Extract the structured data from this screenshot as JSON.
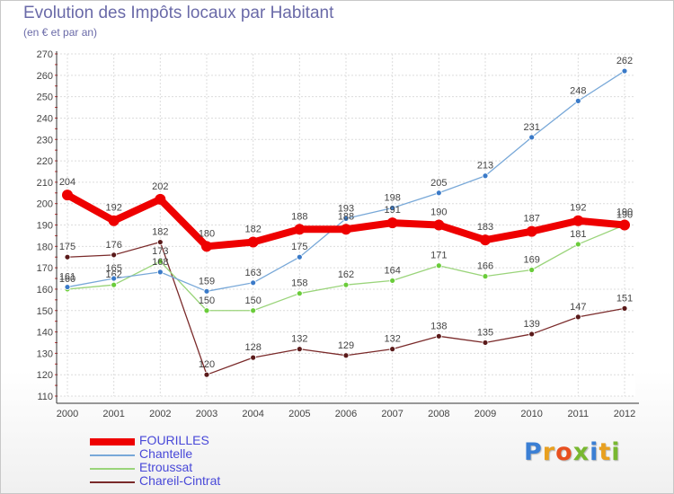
{
  "title": "Evolution des Impôts locaux par Habitant",
  "subtitle": "(en € et par an)",
  "logo": {
    "text": "Proxiti",
    "letters": [
      "P",
      "r",
      "o",
      "x",
      "i",
      "t",
      "i"
    ],
    "colors": [
      "#3b7fd4",
      "#e8a020",
      "#e85020",
      "#78b830",
      "#3b7fd4",
      "#e8a020",
      "#78b830"
    ]
  },
  "chart_data": {
    "type": "line",
    "title": "Evolution des Impôts locaux par Habitant",
    "subtitle": "(en € et par an)",
    "xlabel": "",
    "ylabel": "",
    "categories": [
      "2000",
      "2001",
      "2002",
      "2003",
      "2004",
      "2005",
      "2006",
      "2007",
      "2008",
      "2009",
      "2010",
      "2011",
      "2012"
    ],
    "ylim": [
      110,
      270
    ],
    "yticks": [
      110,
      120,
      130,
      140,
      150,
      160,
      170,
      180,
      190,
      200,
      210,
      220,
      230,
      240,
      250,
      260,
      270
    ],
    "grid": true,
    "legend_position": "bottom-left",
    "series": [
      {
        "name": "Chareil-Cintrat",
        "color": "#7a2a2a",
        "marker": "#5a1a1a",
        "values": [
          175,
          176,
          182,
          120,
          128,
          132,
          129,
          132,
          138,
          135,
          139,
          147,
          151
        ]
      },
      {
        "name": "Etroussat",
        "color": "#9ad47a",
        "marker": "#6acc3a",
        "values": [
          160,
          162,
          173,
          150,
          150,
          158,
          162,
          164,
          171,
          166,
          169,
          181,
          190
        ]
      },
      {
        "name": "Chantelle",
        "color": "#78a8d8",
        "marker": "#3a7ac8",
        "values": [
          161,
          165,
          168,
          159,
          163,
          175,
          193,
          198,
          205,
          213,
          231,
          248,
          262
        ]
      },
      {
        "name": "FOURILLES",
        "color": "#ee0000",
        "marker": "#ee0000",
        "values": [
          204,
          192,
          202,
          180,
          182,
          188,
          188,
          191,
          190,
          183,
          187,
          192,
          190
        ]
      }
    ],
    "legend": [
      "FOURILLES",
      "Chantelle",
      "Etroussat",
      "Chareil-Cintrat"
    ]
  }
}
